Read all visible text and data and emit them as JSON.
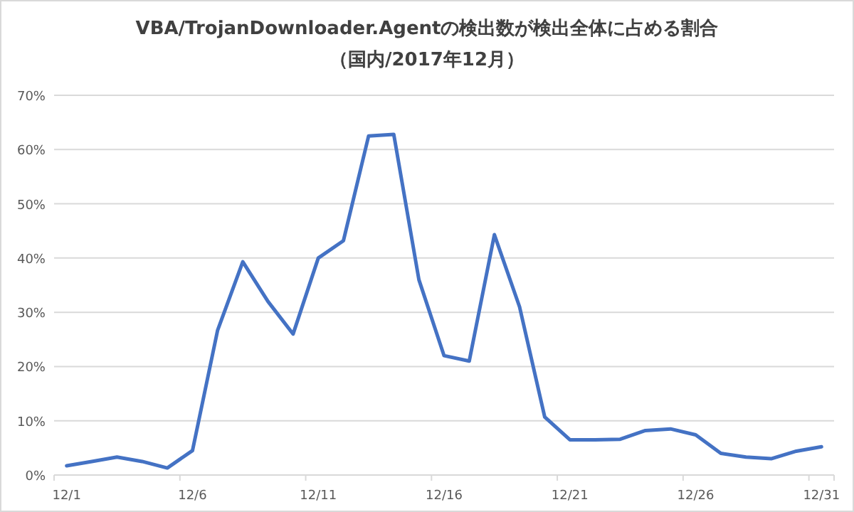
{
  "chart_data": {
    "type": "line",
    "title": "VBA/TrojanDownloader.Agentの検出数が検出全体に占める割合",
    "subtitle": "（国内/2017年12月）",
    "categories": [
      "12/1",
      null,
      null,
      null,
      null,
      "12/6",
      null,
      null,
      null,
      null,
      "12/11",
      null,
      null,
      null,
      null,
      "12/16",
      null,
      null,
      null,
      null,
      "12/21",
      null,
      null,
      null,
      null,
      "12/26",
      null,
      null,
      null,
      null,
      "12/31"
    ],
    "series": [
      {
        "color": "#4472c4",
        "values": [
          1.7,
          2.5,
          3.3,
          2.5,
          1.3,
          4.5,
          26.7,
          39.3,
          32,
          26,
          40,
          43.2,
          62.5,
          62.8,
          36,
          22,
          21,
          44.3,
          31,
          10.7,
          6.5,
          6.5,
          6.6,
          8.2,
          8.5,
          7.4,
          4,
          3.3,
          3,
          4.4,
          5.2
        ]
      }
    ],
    "ylim": [
      0,
      70
    ],
    "yticks": [
      {
        "value": 0,
        "label": "0%"
      },
      {
        "value": 10,
        "label": "10%"
      },
      {
        "value": 20,
        "label": "20%"
      },
      {
        "value": 30,
        "label": "30%"
      },
      {
        "value": 40,
        "label": "40%"
      },
      {
        "value": 50,
        "label": "50%"
      },
      {
        "value": 60,
        "label": "60%"
      },
      {
        "value": 70,
        "label": "70%"
      }
    ],
    "grid": "y",
    "marker": "none",
    "line_style": "solid"
  }
}
